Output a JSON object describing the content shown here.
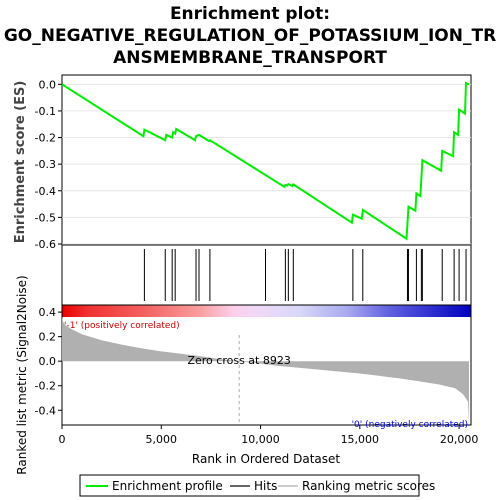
{
  "title_lines": [
    "Enrichment plot:",
    "GO_NEGATIVE_REGULATION_OF_POTASSIUM_ION_TR",
    "ANSMEMBRANE_TRANSPORT"
  ],
  "chart_data": {
    "type": "line",
    "es_panel": {
      "ylabel": "Enrichment score (ES)",
      "ylim": [
        -0.6,
        0.02
      ],
      "yticks": [
        "0.0",
        "-0.1",
        "-0.2",
        "-0.3",
        "-0.4",
        "-0.5",
        "-0.6"
      ],
      "ytick_values": [
        0.0,
        -0.1,
        -0.2,
        -0.3,
        -0.4,
        -0.5,
        -0.6
      ],
      "line_color": "#00ee00",
      "points": [
        [
          0,
          0.0
        ],
        [
          4100,
          -0.195
        ],
        [
          4150,
          -0.17
        ],
        [
          5200,
          -0.21
        ],
        [
          5250,
          -0.19
        ],
        [
          5550,
          -0.2
        ],
        [
          5600,
          -0.18
        ],
        [
          5700,
          -0.185
        ],
        [
          5750,
          -0.168
        ],
        [
          6700,
          -0.21
        ],
        [
          6750,
          -0.195
        ],
        [
          6900,
          -0.19
        ],
        [
          7400,
          -0.213
        ],
        [
          7450,
          -0.21
        ],
        [
          11200,
          -0.385
        ],
        [
          11250,
          -0.378
        ],
        [
          11350,
          -0.38
        ],
        [
          11400,
          -0.375
        ],
        [
          11600,
          -0.382
        ],
        [
          11650,
          -0.376
        ],
        [
          14600,
          -0.52
        ],
        [
          14650,
          -0.49
        ],
        [
          15100,
          -0.505
        ],
        [
          15150,
          -0.472
        ],
        [
          17350,
          -0.58
        ],
        [
          17400,
          -0.52
        ],
        [
          17450,
          -0.46
        ],
        [
          17800,
          -0.475
        ],
        [
          17850,
          -0.41
        ],
        [
          18050,
          -0.42
        ],
        [
          18100,
          -0.35
        ],
        [
          18150,
          -0.285
        ],
        [
          19100,
          -0.325
        ],
        [
          19150,
          -0.25
        ],
        [
          19700,
          -0.27
        ],
        [
          19750,
          -0.18
        ],
        [
          19950,
          -0.19
        ],
        [
          20000,
          -0.095
        ],
        [
          20300,
          -0.11
        ],
        [
          20350,
          0.005
        ],
        [
          20500,
          0.0
        ]
      ]
    },
    "hits": [
      4150,
      5200,
      5550,
      5700,
      6750,
      6900,
      7450,
      10250,
      11250,
      11400,
      11650,
      14650,
      15150,
      17400,
      17450,
      17850,
      18100,
      18150,
      19150,
      19750,
      20000,
      20350
    ],
    "rank_metric_panel": {
      "ylabel": "Ranked list metric (Signal2Noise)",
      "ylim": [
        -0.52,
        0.36
      ],
      "yticks": [
        "0.4",
        "0.2",
        "0.0",
        "-0.2",
        "-0.4"
      ],
      "ytick_values": [
        0.4,
        0.2,
        0.0,
        -0.2,
        -0.4
      ],
      "zero_cross_label": "Zero cross at 8923",
      "zero_cross": 8923,
      "fill_color": "#b0b0b0",
      "profile": [
        [
          0,
          0.36
        ],
        [
          50,
          0.32
        ],
        [
          200,
          0.29
        ],
        [
          500,
          0.26
        ],
        [
          1000,
          0.22
        ],
        [
          2000,
          0.17
        ],
        [
          3000,
          0.135
        ],
        [
          4000,
          0.105
        ],
        [
          5000,
          0.08
        ],
        [
          6000,
          0.06
        ],
        [
          7000,
          0.04
        ],
        [
          8000,
          0.015
        ],
        [
          8923,
          0.0
        ],
        [
          10000,
          -0.02
        ],
        [
          11000,
          -0.04
        ],
        [
          12000,
          -0.055
        ],
        [
          13000,
          -0.07
        ],
        [
          14000,
          -0.085
        ],
        [
          15000,
          -0.1
        ],
        [
          16000,
          -0.12
        ],
        [
          17000,
          -0.14
        ],
        [
          18000,
          -0.165
        ],
        [
          19000,
          -0.19
        ],
        [
          19800,
          -0.22
        ],
        [
          20200,
          -0.27
        ],
        [
          20450,
          -0.33
        ],
        [
          20500,
          -0.52
        ]
      ]
    },
    "positive_label": "'-1' (positively correlated)",
    "negative_label": "'0' (negatively correlated)",
    "xlabel": "Rank in Ordered Dataset",
    "xlim": [
      0,
      20600
    ],
    "xticks": [
      "0",
      "5,000",
      "10,000",
      "15,000",
      "20,000"
    ],
    "xtick_values": [
      0,
      5000,
      10000,
      15000,
      20000
    ],
    "legend": [
      "Enrichment profile",
      "Hits",
      "Ranking metric scores"
    ]
  },
  "colors": {
    "es_line": "#00ee00",
    "hits": "#000000",
    "positive_text": "#cc0000",
    "negative_text": "#0000cc",
    "zero_line": "#aaaaaa"
  }
}
